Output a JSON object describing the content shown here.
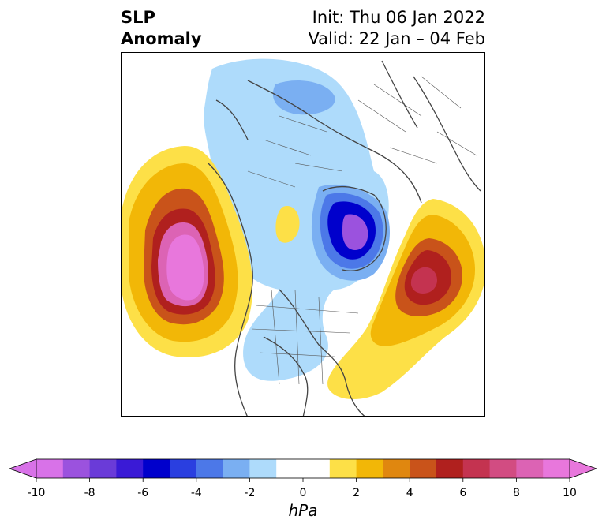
{
  "header": {
    "title_line1": "SLP",
    "title_line2": "Anomaly",
    "init_text": "Init: Thu 06 Jan 2022",
    "valid_text": "Valid: 22 Jan – 04 Feb"
  },
  "colorbar": {
    "unit": "hPa",
    "min": -10,
    "max": 10,
    "ticks": [
      "-10",
      "-8",
      "-6",
      "-4",
      "-2",
      "0",
      "2",
      "4",
      "6",
      "8",
      "10"
    ],
    "colors": [
      "#d872e8",
      "#9b52de",
      "#6a3bd8",
      "#3a1ad6",
      "#0000cc",
      "#2a3fe0",
      "#4c78e8",
      "#7aaff2",
      "#aedbfb",
      "#ffffff",
      "#ffffff",
      "#fde047",
      "#f2b707",
      "#e0870f",
      "#c9531a",
      "#b0201e",
      "#c43350",
      "#d24c82",
      "#dc63b4",
      "#e877dc"
    ]
  },
  "map": {
    "description_colors": {
      "strong_positive": "#e877dc",
      "positive": "#b0201e",
      "weak_positive": "#fde047",
      "weak_negative": "#aedbfb",
      "negative": "#4c78e8",
      "strong_negative": "#0000cc"
    }
  }
}
